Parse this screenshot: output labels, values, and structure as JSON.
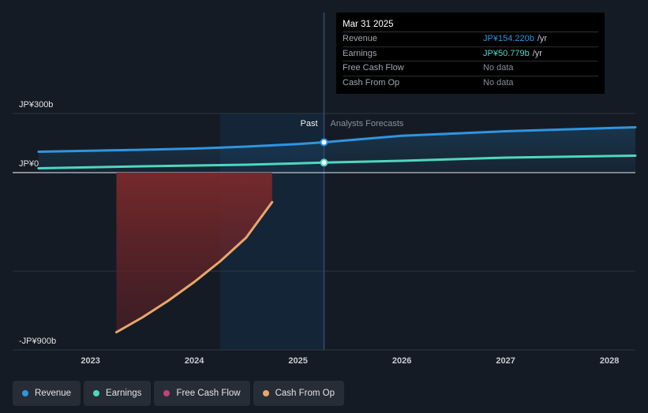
{
  "chart_data": {
    "type": "line",
    "x_unit": "year",
    "xlim": [
      2022.25,
      2028.25
    ],
    "ylim": [
      -900,
      300
    ],
    "y_tick_labels": [
      "JP¥300b",
      "JP¥0",
      "-JP¥900b"
    ],
    "x_ticks": [
      2023,
      2024,
      2025,
      2026,
      2027,
      2028
    ],
    "past_label": "Past",
    "forecast_label": "Analysts Forecasts",
    "past_region_start": 2024.25,
    "divider_x": 2025.25,
    "series": [
      {
        "name": "Revenue",
        "color": "#2f95e0",
        "x": [
          2022.5,
          2023.0,
          2023.5,
          2024.0,
          2024.5,
          2025.0,
          2025.25,
          2026.0,
          2027.0,
          2028.25
        ],
        "y": [
          106,
          111,
          116,
          122,
          132,
          145,
          154.22,
          187,
          210,
          230
        ]
      },
      {
        "name": "Earnings",
        "color": "#4ed7c0",
        "x": [
          2022.5,
          2023.0,
          2023.5,
          2024.0,
          2024.5,
          2025.0,
          2025.25,
          2026.0,
          2027.0,
          2028.25
        ],
        "y": [
          22,
          27,
          32,
          36,
          40,
          47,
          50.779,
          60,
          76,
          86
        ]
      },
      {
        "name": "Cash From Op",
        "color": "#e9a66a",
        "x": [
          2023.25,
          2023.5,
          2023.75,
          2024.0,
          2024.25,
          2024.5,
          2024.75
        ],
        "y": [
          -810,
          -735,
          -650,
          -555,
          -450,
          -330,
          -150
        ]
      }
    ],
    "highlight": {
      "x": 2025.25,
      "revenue": 154.22,
      "earnings": 50.779
    }
  },
  "tooltip": {
    "date": "Mar 31 2025",
    "rows": [
      {
        "label": "Revenue",
        "value": "JP¥154.220b",
        "unit": "/yr"
      },
      {
        "label": "Earnings",
        "value": "JP¥50.779b",
        "unit": "/yr"
      },
      {
        "label": "Free Cash Flow",
        "value": "No data",
        "unit": ""
      },
      {
        "label": "Cash From Op",
        "value": "No data",
        "unit": ""
      }
    ]
  },
  "legend": [
    {
      "label": "Revenue",
      "color": "#2f95e0"
    },
    {
      "label": "Earnings",
      "color": "#4ed7c0"
    },
    {
      "label": "Free Cash Flow",
      "color": "#c2417f"
    },
    {
      "label": "Cash From Op",
      "color": "#e9a66a"
    }
  ]
}
